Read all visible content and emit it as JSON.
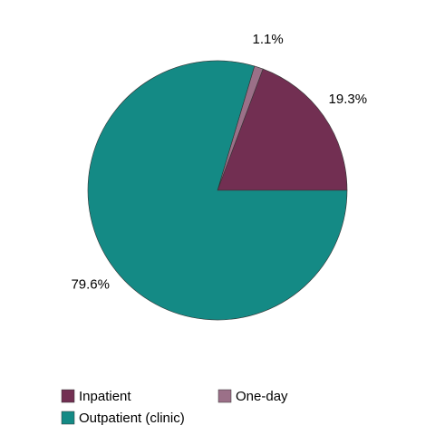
{
  "chart_data": {
    "type": "pie",
    "categories": [
      "Inpatient",
      "One-day",
      "Outpatient (clinic)"
    ],
    "values": [
      19.3,
      1.1,
      79.6
    ],
    "value_labels": [
      "19.3%",
      "1.1%",
      "79.6%"
    ],
    "colors": [
      "#722f52",
      "#9b7088",
      "#148a85"
    ]
  }
}
